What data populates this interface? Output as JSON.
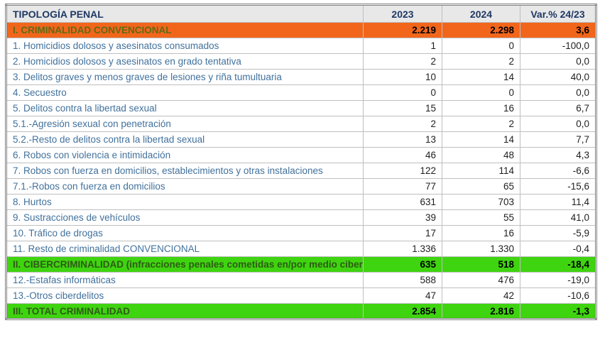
{
  "colors": {
    "header-bg": "#E8E8E8",
    "header-text": "#1F3864",
    "row-label-text": "#41719C",
    "number-text": "#1F1F1F",
    "orange-bg": "#F2661B",
    "orange-label-text": "#5F6B16",
    "green-bg": "#3FD410",
    "green-label-text": "#2E5B14",
    "grid-line": "#BFBFBF",
    "outer-border": "#808080"
  },
  "table": {
    "columns": [
      "TIPOLOGÍA PENAL",
      "2023",
      "2024",
      "Var.% 24/23"
    ],
    "rows": [
      {
        "label": "I. CRIMINALIDAD CONVENCIONAL",
        "y2023": "2.219",
        "y2024": "2.298",
        "variation": "3,6",
        "style": "orange"
      },
      {
        "label": "1. Homicidios dolosos y asesinatos consumados",
        "y2023": "1",
        "y2024": "0",
        "variation": "-100,0",
        "style": "normal"
      },
      {
        "label": "2. Homicidios dolosos y asesinatos en grado tentativa",
        "y2023": "2",
        "y2024": "2",
        "variation": "0,0",
        "style": "normal"
      },
      {
        "label": "3. Delitos graves y menos graves de lesiones y riña tumultuaria",
        "y2023": "10",
        "y2024": "14",
        "variation": "40,0",
        "style": "normal"
      },
      {
        "label": "4. Secuestro",
        "y2023": "0",
        "y2024": "0",
        "variation": "0,0",
        "style": "normal"
      },
      {
        "label": "5. Delitos contra la libertad sexual",
        "y2023": "15",
        "y2024": "16",
        "variation": "6,7",
        "style": "normal"
      },
      {
        "label": "5.1.-Agresión sexual con penetración",
        "y2023": "2",
        "y2024": "2",
        "variation": "0,0",
        "style": "normal"
      },
      {
        "label": "5.2.-Resto de delitos contra la libertad sexual",
        "y2023": "13",
        "y2024": "14",
        "variation": "7,7",
        "style": "normal"
      },
      {
        "label": "6. Robos con violencia e intimidación",
        "y2023": "46",
        "y2024": "48",
        "variation": "4,3",
        "style": "normal"
      },
      {
        "label": "7. Robos con fuerza en domicilios, establecimientos y otras instalaciones",
        "y2023": "122",
        "y2024": "114",
        "variation": "-6,6",
        "style": "normal"
      },
      {
        "label": "7.1.-Robos con fuerza en domicilios",
        "y2023": "77",
        "y2024": "65",
        "variation": "-15,6",
        "style": "normal"
      },
      {
        "label": "8. Hurtos",
        "y2023": "631",
        "y2024": "703",
        "variation": "11,4",
        "style": "normal"
      },
      {
        "label": "9. Sustracciones de vehículos",
        "y2023": "39",
        "y2024": "55",
        "variation": "41,0",
        "style": "normal"
      },
      {
        "label": "10. Tráfico de drogas",
        "y2023": "17",
        "y2024": "16",
        "variation": "-5,9",
        "style": "normal"
      },
      {
        "label": "11. Resto de criminalidad CONVENCIONAL",
        "y2023": "1.336",
        "y2024": "1.330",
        "variation": "-0,4",
        "style": "normal"
      },
      {
        "label": "II. CIBERCRIMINALIDAD (infracciones penales cometidas en/por medio ciber)",
        "y2023": "635",
        "y2024": "518",
        "variation": "-18,4",
        "style": "green"
      },
      {
        "label": "12.-Estafas informáticas",
        "y2023": "588",
        "y2024": "476",
        "variation": "-19,0",
        "style": "normal"
      },
      {
        "label": "13.-Otros ciberdelitos",
        "y2023": "47",
        "y2024": "42",
        "variation": "-10,6",
        "style": "normal"
      },
      {
        "label": "III. TOTAL CRIMINALIDAD",
        "y2023": "2.854",
        "y2024": "2.816",
        "variation": "-1,3",
        "style": "green"
      }
    ]
  }
}
